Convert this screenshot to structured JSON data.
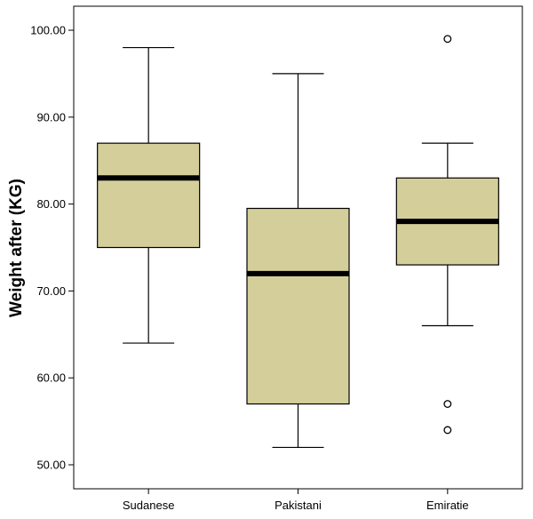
{
  "chart_data": {
    "type": "boxplot",
    "title": "",
    "xlabel": "",
    "ylabel": "Weight after (KG)",
    "ylim": [
      47.5,
      102.5
    ],
    "yticks": [
      50,
      60,
      70,
      80,
      90,
      100
    ],
    "ytick_labels": [
      "50.00",
      "60.00",
      "70.00",
      "80.00",
      "90.00",
      "100.00"
    ],
    "grid": false,
    "legend": "none",
    "box_fill": "#d4cf9a",
    "categories": [
      "Sudanese",
      "Pakistani",
      "Emiratie"
    ],
    "boxes": [
      {
        "category": "Sudanese",
        "whisker_low": 64,
        "q1": 75,
        "median": 83,
        "q3": 87,
        "whisker_high": 98,
        "outliers": []
      },
      {
        "category": "Pakistani",
        "whisker_low": 52,
        "q1": 57,
        "median": 72,
        "q3": 79.5,
        "whisker_high": 95,
        "outliers": []
      },
      {
        "category": "Emiratie",
        "whisker_low": 66,
        "q1": 73,
        "median": 78,
        "q3": 83,
        "whisker_high": 87,
        "outliers": [
          99,
          57,
          54
        ]
      }
    ]
  }
}
